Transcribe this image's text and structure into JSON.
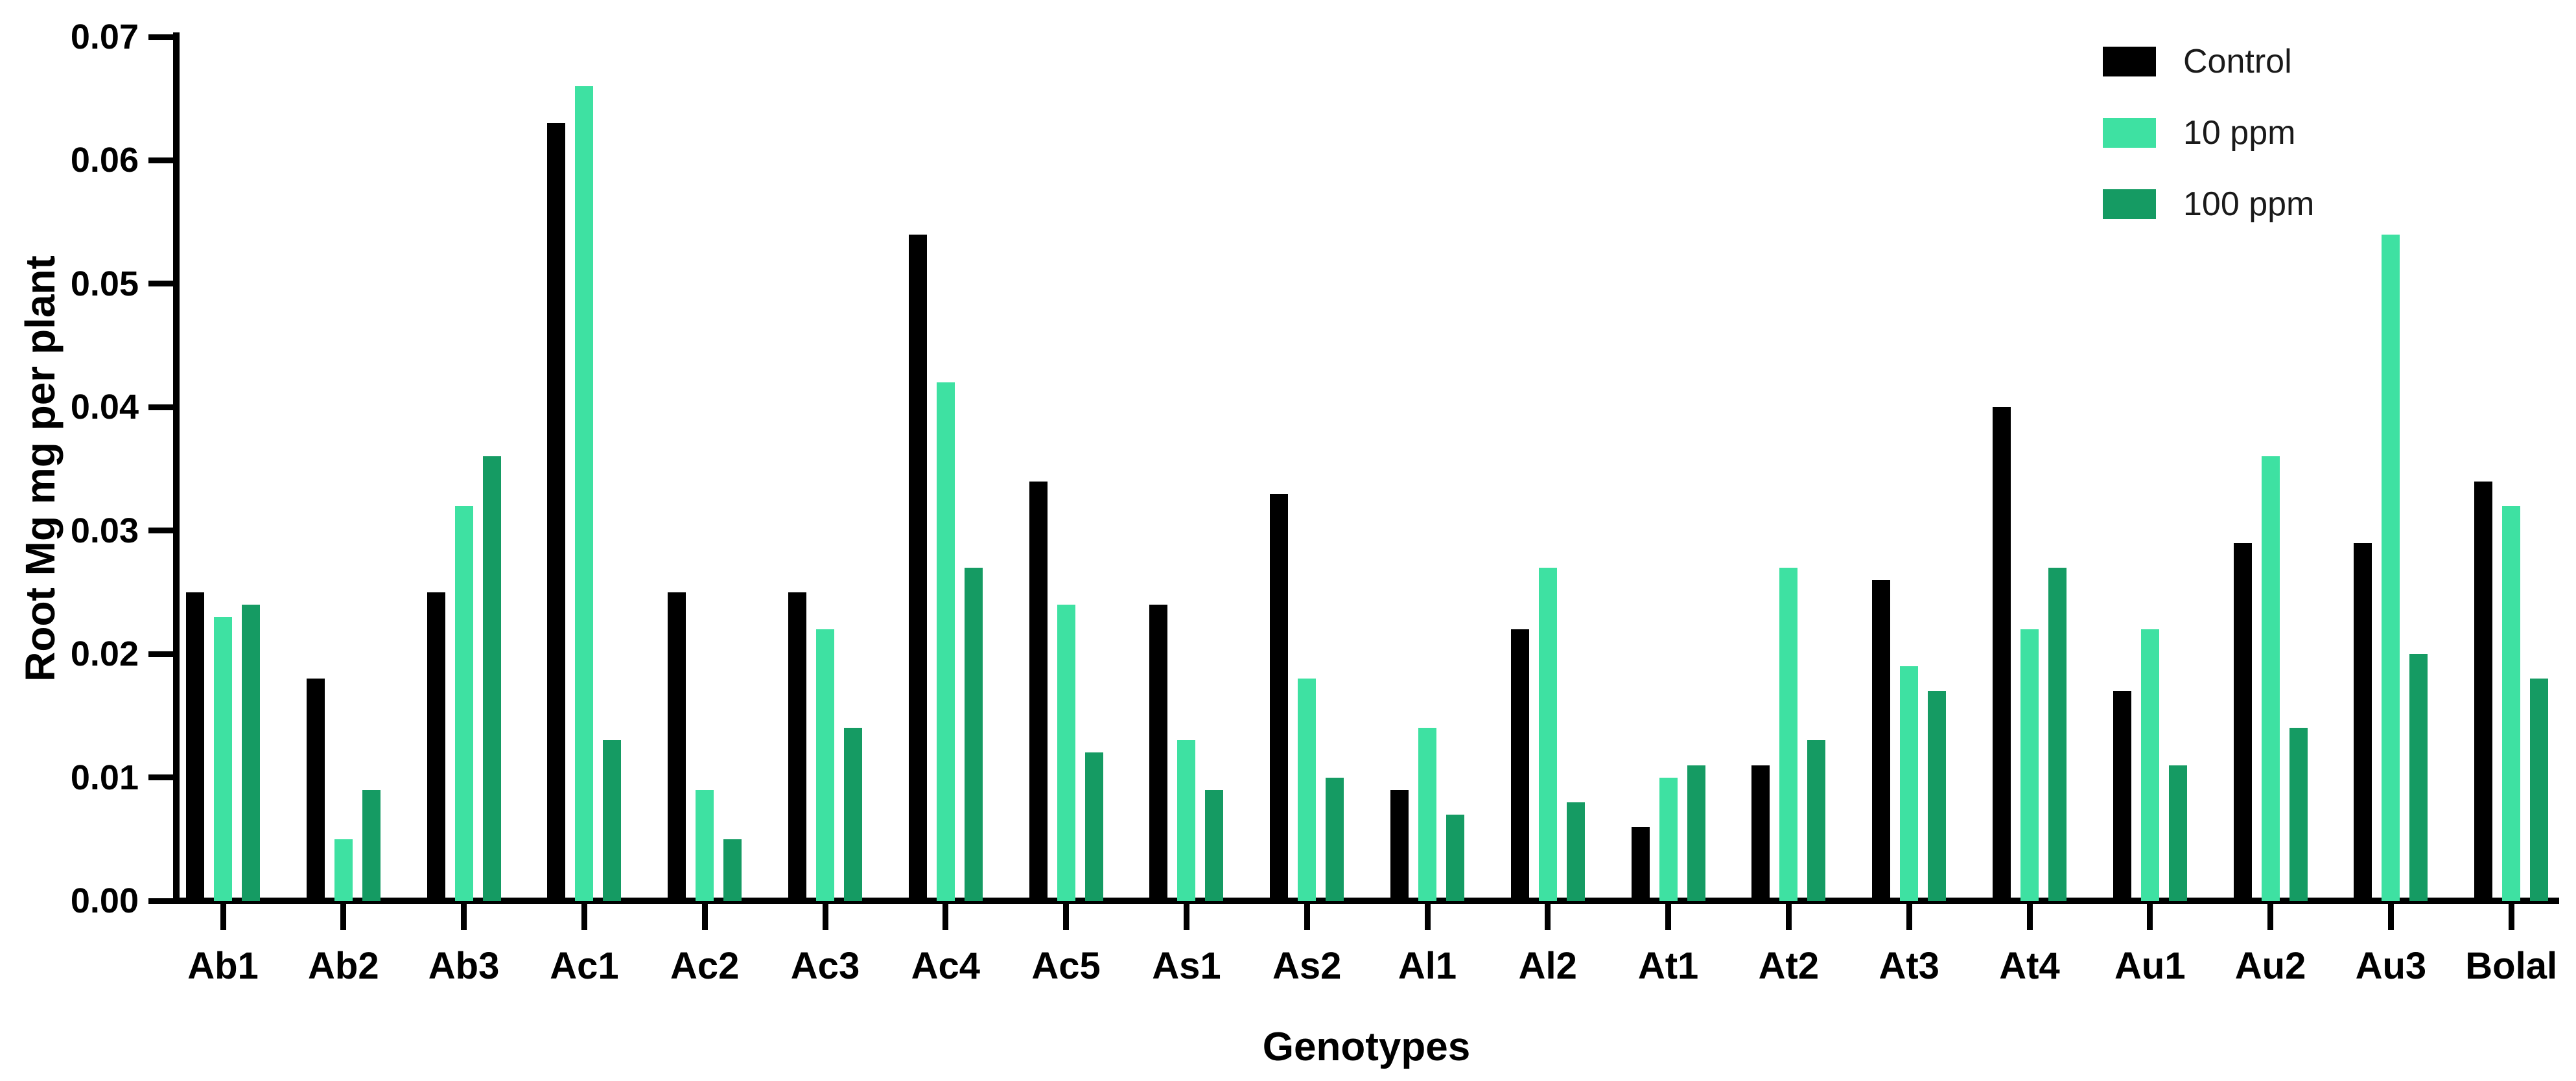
{
  "chart_data": {
    "type": "bar",
    "title": "",
    "xlabel": "Genotypes",
    "ylabel": "Root Mg mg per plant",
    "ylim": [
      0,
      0.07
    ],
    "yticks": [
      0.0,
      0.01,
      0.02,
      0.03,
      0.04,
      0.05,
      0.06,
      0.07
    ],
    "ytick_decimals": 2,
    "grid": false,
    "legend_position": "top-right",
    "background_color": "#ffffff",
    "axis_color": "#000000",
    "categories": [
      "Ab1",
      "Ab2",
      "Ab3",
      "Ac1",
      "Ac2",
      "Ac3",
      "Ac4",
      "Ac5",
      "As1",
      "As2",
      "Al1",
      "Al2",
      "At1",
      "At2",
      "At3",
      "At4",
      "Au1",
      "Au2",
      "Au3",
      "Bolal"
    ],
    "series": [
      {
        "name": "Control",
        "color": "#000000",
        "values": [
          0.025,
          0.018,
          0.025,
          0.063,
          0.025,
          0.025,
          0.054,
          0.034,
          0.024,
          0.033,
          0.009,
          0.022,
          0.006,
          0.011,
          0.026,
          0.04,
          0.017,
          0.029,
          0.029,
          0.034
        ]
      },
      {
        "name": "10 ppm",
        "color": "#3EE1A2",
        "values": [
          0.023,
          0.005,
          0.032,
          0.066,
          0.009,
          0.022,
          0.042,
          0.024,
          0.013,
          0.018,
          0.014,
          0.027,
          0.01,
          0.027,
          0.019,
          0.022,
          0.022,
          0.036,
          0.054,
          0.032
        ]
      },
      {
        "name": "100 ppm",
        "color": "#159B63",
        "values": [
          0.024,
          0.009,
          0.036,
          0.013,
          0.005,
          0.014,
          0.027,
          0.012,
          0.009,
          0.01,
          0.007,
          0.008,
          0.011,
          0.013,
          0.017,
          0.027,
          0.011,
          0.014,
          0.02,
          0.018
        ]
      }
    ]
  }
}
